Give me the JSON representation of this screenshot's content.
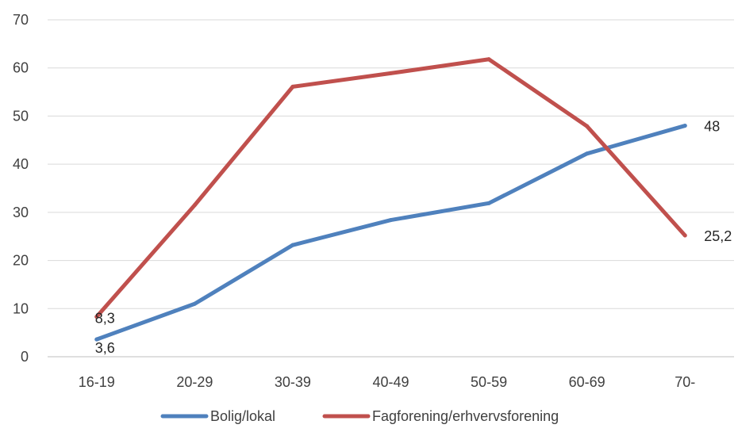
{
  "chart_data": {
    "type": "line",
    "categories": [
      "16-19",
      "20-29",
      "30-39",
      "40-49",
      "50-59",
      "60-69",
      "70-"
    ],
    "ylim": [
      0,
      70
    ],
    "yticks": [
      0,
      10,
      20,
      30,
      40,
      50,
      60,
      70
    ],
    "grid": true,
    "legend_position": "bottom",
    "series": [
      {
        "name": "Bolig/lokal",
        "color": "#4F81BD",
        "values": [
          3.6,
          11,
          23.2,
          28.4,
          31.9,
          42.2,
          48
        ],
        "data_labels": [
          {
            "index": 0,
            "text": "3,6"
          },
          {
            "index": 6,
            "text": "48"
          }
        ]
      },
      {
        "name": "Fagforening/erhvervsforening",
        "color": "#C0504D",
        "values": [
          8.3,
          31.5,
          56.1,
          58.9,
          61.8,
          47.9,
          25.2
        ],
        "data_labels": [
          {
            "index": 0,
            "text": "8,3"
          },
          {
            "index": 6,
            "text": "25,2"
          }
        ]
      }
    ]
  }
}
